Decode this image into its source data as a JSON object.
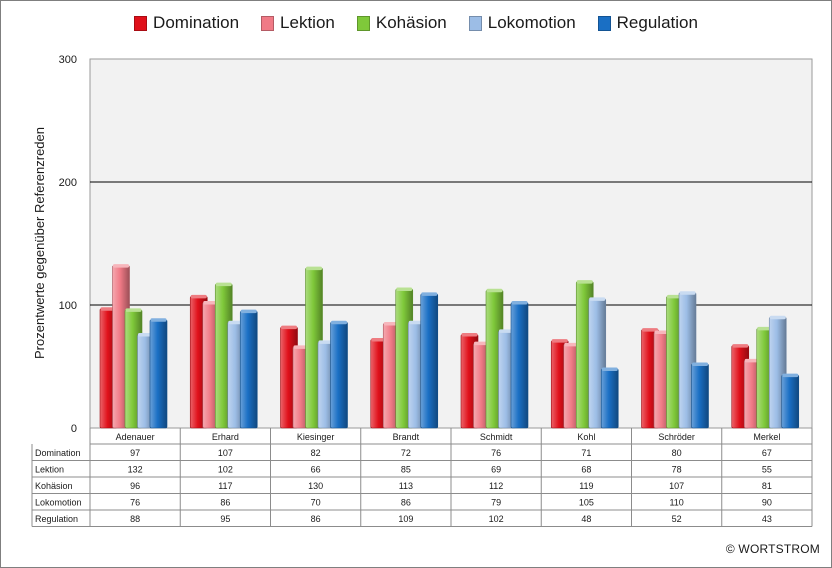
{
  "chart_data": {
    "type": "bar",
    "title": "",
    "xlabel": "",
    "ylabel": "Prozentwerte gegenüber Referenzreden",
    "ylim": [
      0,
      300
    ],
    "yticks": [
      0,
      100,
      200,
      300
    ],
    "grid": true,
    "legend": "top",
    "categories": [
      "Adenauer",
      "Erhard",
      "Kiesinger",
      "Brandt",
      "Schmidt",
      "Kohl",
      "Schröder",
      "Merkel"
    ],
    "series": [
      {
        "name": "Domination",
        "color": "#e0101a",
        "values": [
          97,
          107,
          82,
          72,
          76,
          71,
          80,
          67
        ]
      },
      {
        "name": "Lektion",
        "color": "#f07a86",
        "values": [
          132,
          102,
          66,
          85,
          69,
          68,
          78,
          55
        ]
      },
      {
        "name": "Kohäsion",
        "color": "#7fc93a",
        "values": [
          96,
          117,
          130,
          113,
          112,
          119,
          107,
          81
        ]
      },
      {
        "name": "Lokomotion",
        "color": "#9cbde6",
        "values": [
          76,
          86,
          70,
          86,
          79,
          105,
          110,
          90
        ]
      },
      {
        "name": "Regulation",
        "color": "#1a6fc4",
        "values": [
          88,
          95,
          86,
          109,
          102,
          48,
          52,
          43
        ]
      }
    ]
  },
  "footer": {
    "copyright": "© WORTSTROM"
  }
}
